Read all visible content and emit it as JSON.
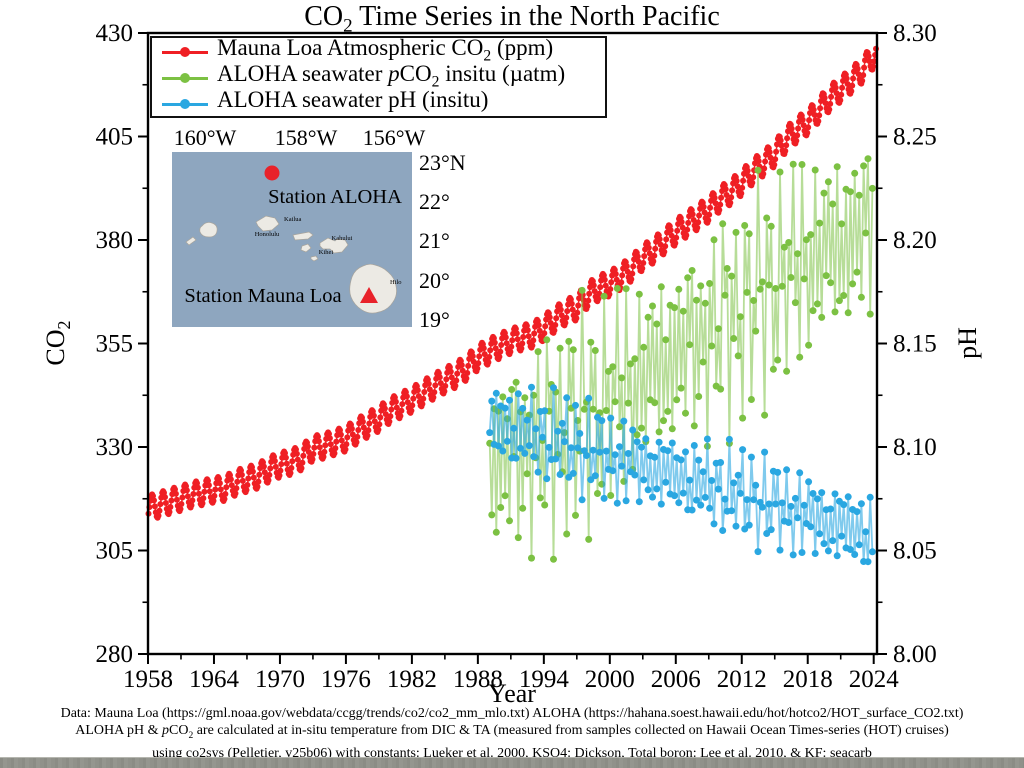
{
  "title": {
    "pre": "CO",
    "sub": "2",
    "post": " Time Series in the North Pacific"
  },
  "axes": {
    "x_label": "Year",
    "y_left_label": {
      "pre": "CO",
      "sub": "2"
    },
    "y_right_label": "pH",
    "x_ticks": [
      "1958",
      "1964",
      "1970",
      "1976",
      "1982",
      "1988",
      "1994",
      "2000",
      "2006",
      "2012",
      "2018",
      "2024"
    ],
    "x_minor": [
      1961,
      1967,
      1973,
      1979,
      1985,
      1991,
      1997,
      2003,
      2009,
      2015,
      2021
    ],
    "y_left_ticks": [
      "280",
      "305",
      "330",
      "355",
      "380",
      "405",
      "430"
    ],
    "y_left_minor": [
      292.5,
      317.5,
      342.5,
      367.5,
      392.5,
      417.5
    ],
    "y_right_ticks": [
      "8.00",
      "8.05",
      "8.10",
      "8.15",
      "8.20",
      "8.25",
      "8.30"
    ],
    "y_right_minor": [
      8.025,
      8.075,
      8.125,
      8.175,
      8.225,
      8.275
    ],
    "xlim": [
      1958,
      2024.3
    ],
    "ylim_left": [
      280,
      430
    ],
    "ylim_right": [
      8.0,
      8.3
    ]
  },
  "legend": {
    "entries": [
      {
        "pre": "Mauna Loa Atmospheric CO",
        "sub": "2",
        "post": " (ppm)"
      },
      {
        "pre": "ALOHA seawater ",
        "it": "p",
        "mid": "CO",
        "sub": "2",
        "post": " insitu (µatm)"
      },
      {
        "pre": "ALOHA seawater pH (insitu)"
      }
    ]
  },
  "chart_data": {
    "type": "line",
    "title": "CO2 Time Series in the North Pacific",
    "xlabel": "Year",
    "ylabel_left": "CO2 (ppm / µatm)",
    "ylabel_right": "pH",
    "xlim": [
      1958,
      2024.3
    ],
    "ylim_left": [
      280,
      430
    ],
    "ylim_right": [
      8.0,
      8.3
    ],
    "legend_position": "upper left",
    "grid": false,
    "series": [
      {
        "name": "Mauna Loa Atmospheric CO2 (ppm)",
        "axis": "left",
        "color": "#ef1f24",
        "marker": "circle",
        "cadence": "monthly",
        "start_year": 1958,
        "seasonal_amplitude": 3.0,
        "seasonal_peak_frac": 0.37,
        "annual_means": [
          315.3,
          316.0,
          316.9,
          317.6,
          318.5,
          319.0,
          319.6,
          320.0,
          321.4,
          322.2,
          323.0,
          324.6,
          325.7,
          326.3,
          327.5,
          329.7,
          330.2,
          331.1,
          332.0,
          333.8,
          335.4,
          336.8,
          338.8,
          340.1,
          341.4,
          343.0,
          344.6,
          346.1,
          347.4,
          349.2,
          351.6,
          353.1,
          354.4,
          355.6,
          356.4,
          357.1,
          358.8,
          360.8,
          362.6,
          363.7,
          366.7,
          368.4,
          369.5,
          371.1,
          373.2,
          375.8,
          377.5,
          379.8,
          381.9,
          383.8,
          385.6,
          387.4,
          389.9,
          391.6,
          393.9,
          396.5,
          398.6,
          400.8,
          404.2,
          406.6,
          408.5,
          411.4,
          414.2,
          416.4,
          418.6,
          421.1,
          424.6
        ]
      },
      {
        "name": "ALOHA seawater pCO2 insitu (µatm)",
        "axis": "left",
        "color": "#7cc143",
        "marker": "circle",
        "cadence": "cruises",
        "start_year": 1989,
        "sample_fracs": [
          0.08,
          0.27,
          0.48,
          0.68,
          0.88
        ],
        "scatter": 22,
        "seasonal_amplitude": 8,
        "seasonal_peak_frac": 0.5,
        "offset_cycle": [
          0.45,
          -0.7,
          0.15,
          -1.0,
          0.75,
          -0.3,
          0.55,
          -0.85,
          0.2,
          -0.5,
          0.95,
          -0.15,
          0.35,
          -1.15,
          0.65,
          -0.4
        ],
        "annual_means": [
          328,
          329,
          330,
          331,
          333,
          334,
          336,
          338,
          339,
          340,
          342,
          344,
          346,
          347,
          349,
          351,
          353,
          355,
          357,
          358,
          360,
          362,
          364,
          366,
          368,
          370,
          372,
          374,
          376,
          377,
          379,
          380,
          381,
          383,
          384
        ]
      },
      {
        "name": "ALOHA seawater pH (insitu)",
        "axis": "right",
        "color": "#2aa7e1",
        "marker": "circle",
        "cadence": "cruises",
        "start_year": 1989,
        "sample_fracs": [
          0.08,
          0.27,
          0.48,
          0.68,
          0.88
        ],
        "scatter": -0.0185,
        "seasonal_amplitude": -0.006,
        "seasonal_peak_frac": 0.5,
        "offset_cycle": [
          0.45,
          -0.7,
          0.15,
          -1.0,
          0.75,
          -0.3,
          0.55,
          -0.85,
          0.2,
          -0.5,
          0.95,
          -0.15,
          0.35,
          -1.15,
          0.65,
          -0.4
        ],
        "annual_means": [
          8.11,
          8.109,
          8.107,
          8.106,
          8.104,
          8.103,
          8.101,
          8.1,
          8.098,
          8.097,
          8.095,
          8.093,
          8.092,
          8.09,
          8.089,
          8.087,
          8.086,
          8.084,
          8.082,
          8.081,
          8.079,
          8.078,
          8.076,
          8.075,
          8.073,
          8.071,
          8.07,
          8.068,
          8.067,
          8.065,
          8.063,
          8.062,
          8.06,
          8.059,
          8.057
        ]
      }
    ]
  },
  "inset_map": {
    "sea_color": "#8ea6bf",
    "lon_labels": [
      "160°W",
      "158°W",
      "156°W"
    ],
    "lat_labels": [
      "23°N",
      "22°",
      "21°",
      "20°",
      "19°"
    ],
    "island_labels": [
      "Kailua",
      "Honolulu",
      "Kahului",
      "Kihei",
      "Hilo"
    ],
    "stations": [
      {
        "label": "Station ALOHA",
        "marker": "circle",
        "color": "#e8222a"
      },
      {
        "label": "Station Mauna Loa",
        "marker": "triangle",
        "color": "#e8222a"
      }
    ]
  },
  "footer": {
    "lines": [
      {
        "pre": "Data: Mauna Loa (https://gml.noaa.gov/webdata/ccgg/trends/co2/co2_mm_mlo.txt)  ALOHA (https://hahana.soest.hawaii.edu/hot/hotco2/HOT_surface_CO2.txt)"
      },
      {
        "pre": "ALOHA pH & ",
        "it": "p",
        "mid": "CO",
        "sub": "2",
        "post": " are calculated at in-situ temperature from DIC & TA (measured from samples collected on Hawaii Ocean Times-series (HOT) cruises)"
      },
      {
        "pre": "using co2sys (Pelletier, v25b06) with constants: Lueker et al. 2000, KSO4: Dickson, Total boron: Lee et al. 2010, & KF: seacarb"
      }
    ]
  }
}
